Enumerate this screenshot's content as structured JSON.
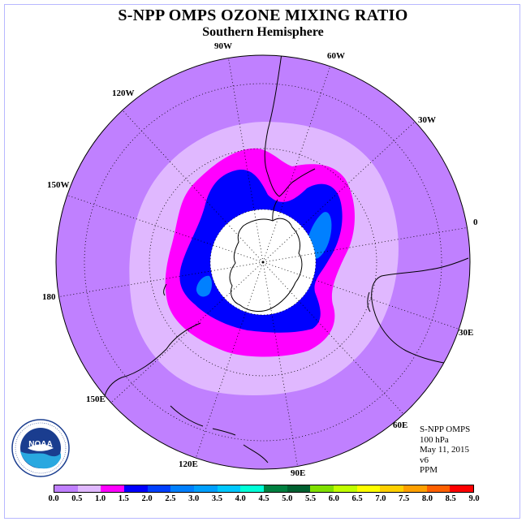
{
  "header": {
    "title": "S-NPP OMPS OZONE MIXING RATIO",
    "subtitle": "Southern Hemisphere"
  },
  "map": {
    "projection": "polar stereographic, south pole centred",
    "lon_labels": [
      "90W",
      "60W",
      "30W",
      "0",
      "30E",
      "60E",
      "90E",
      "120E",
      "150E",
      "180",
      "150W",
      "120W"
    ],
    "colors": {
      "background": "#c080ff",
      "ring_light": "#e0b8ff",
      "ring_magenta": "#ff00ff",
      "core_blue": "#0000ff",
      "core_light_blue": "#0080ff",
      "polar_cap": "#ffffff"
    }
  },
  "info": {
    "lines": [
      "S-NPP OMPS",
      "100 hPa",
      "May 11, 2015",
      "v6",
      "PPM"
    ]
  },
  "legend": {
    "ticks": [
      "0.0",
      "0.5",
      "1.0",
      "1.5",
      "2.0",
      "2.5",
      "3.0",
      "3.5",
      "4.0",
      "4.5",
      "5.0",
      "5.5",
      "6.0",
      "6.5",
      "7.0",
      "7.5",
      "8.0",
      "8.5",
      "9.0"
    ],
    "colors": [
      "#c080ff",
      "#e0b8ff",
      "#ff00ff",
      "#0000ff",
      "#0040ff",
      "#0080ff",
      "#00a0ff",
      "#00c8ff",
      "#00ffd8",
      "#008040",
      "#006030",
      "#80e000",
      "#c0ff00",
      "#ffff00",
      "#ffd000",
      "#ffa000",
      "#ff6000",
      "#ff0000",
      "#806040"
    ],
    "unit": "PPM"
  },
  "logo": {
    "text": "NOAA",
    "ring_text": "NATIONAL OCEANIC AND ATMOSPHERIC ADMINISTRATION · U.S. DEPARTMENT OF COMMERCE"
  }
}
